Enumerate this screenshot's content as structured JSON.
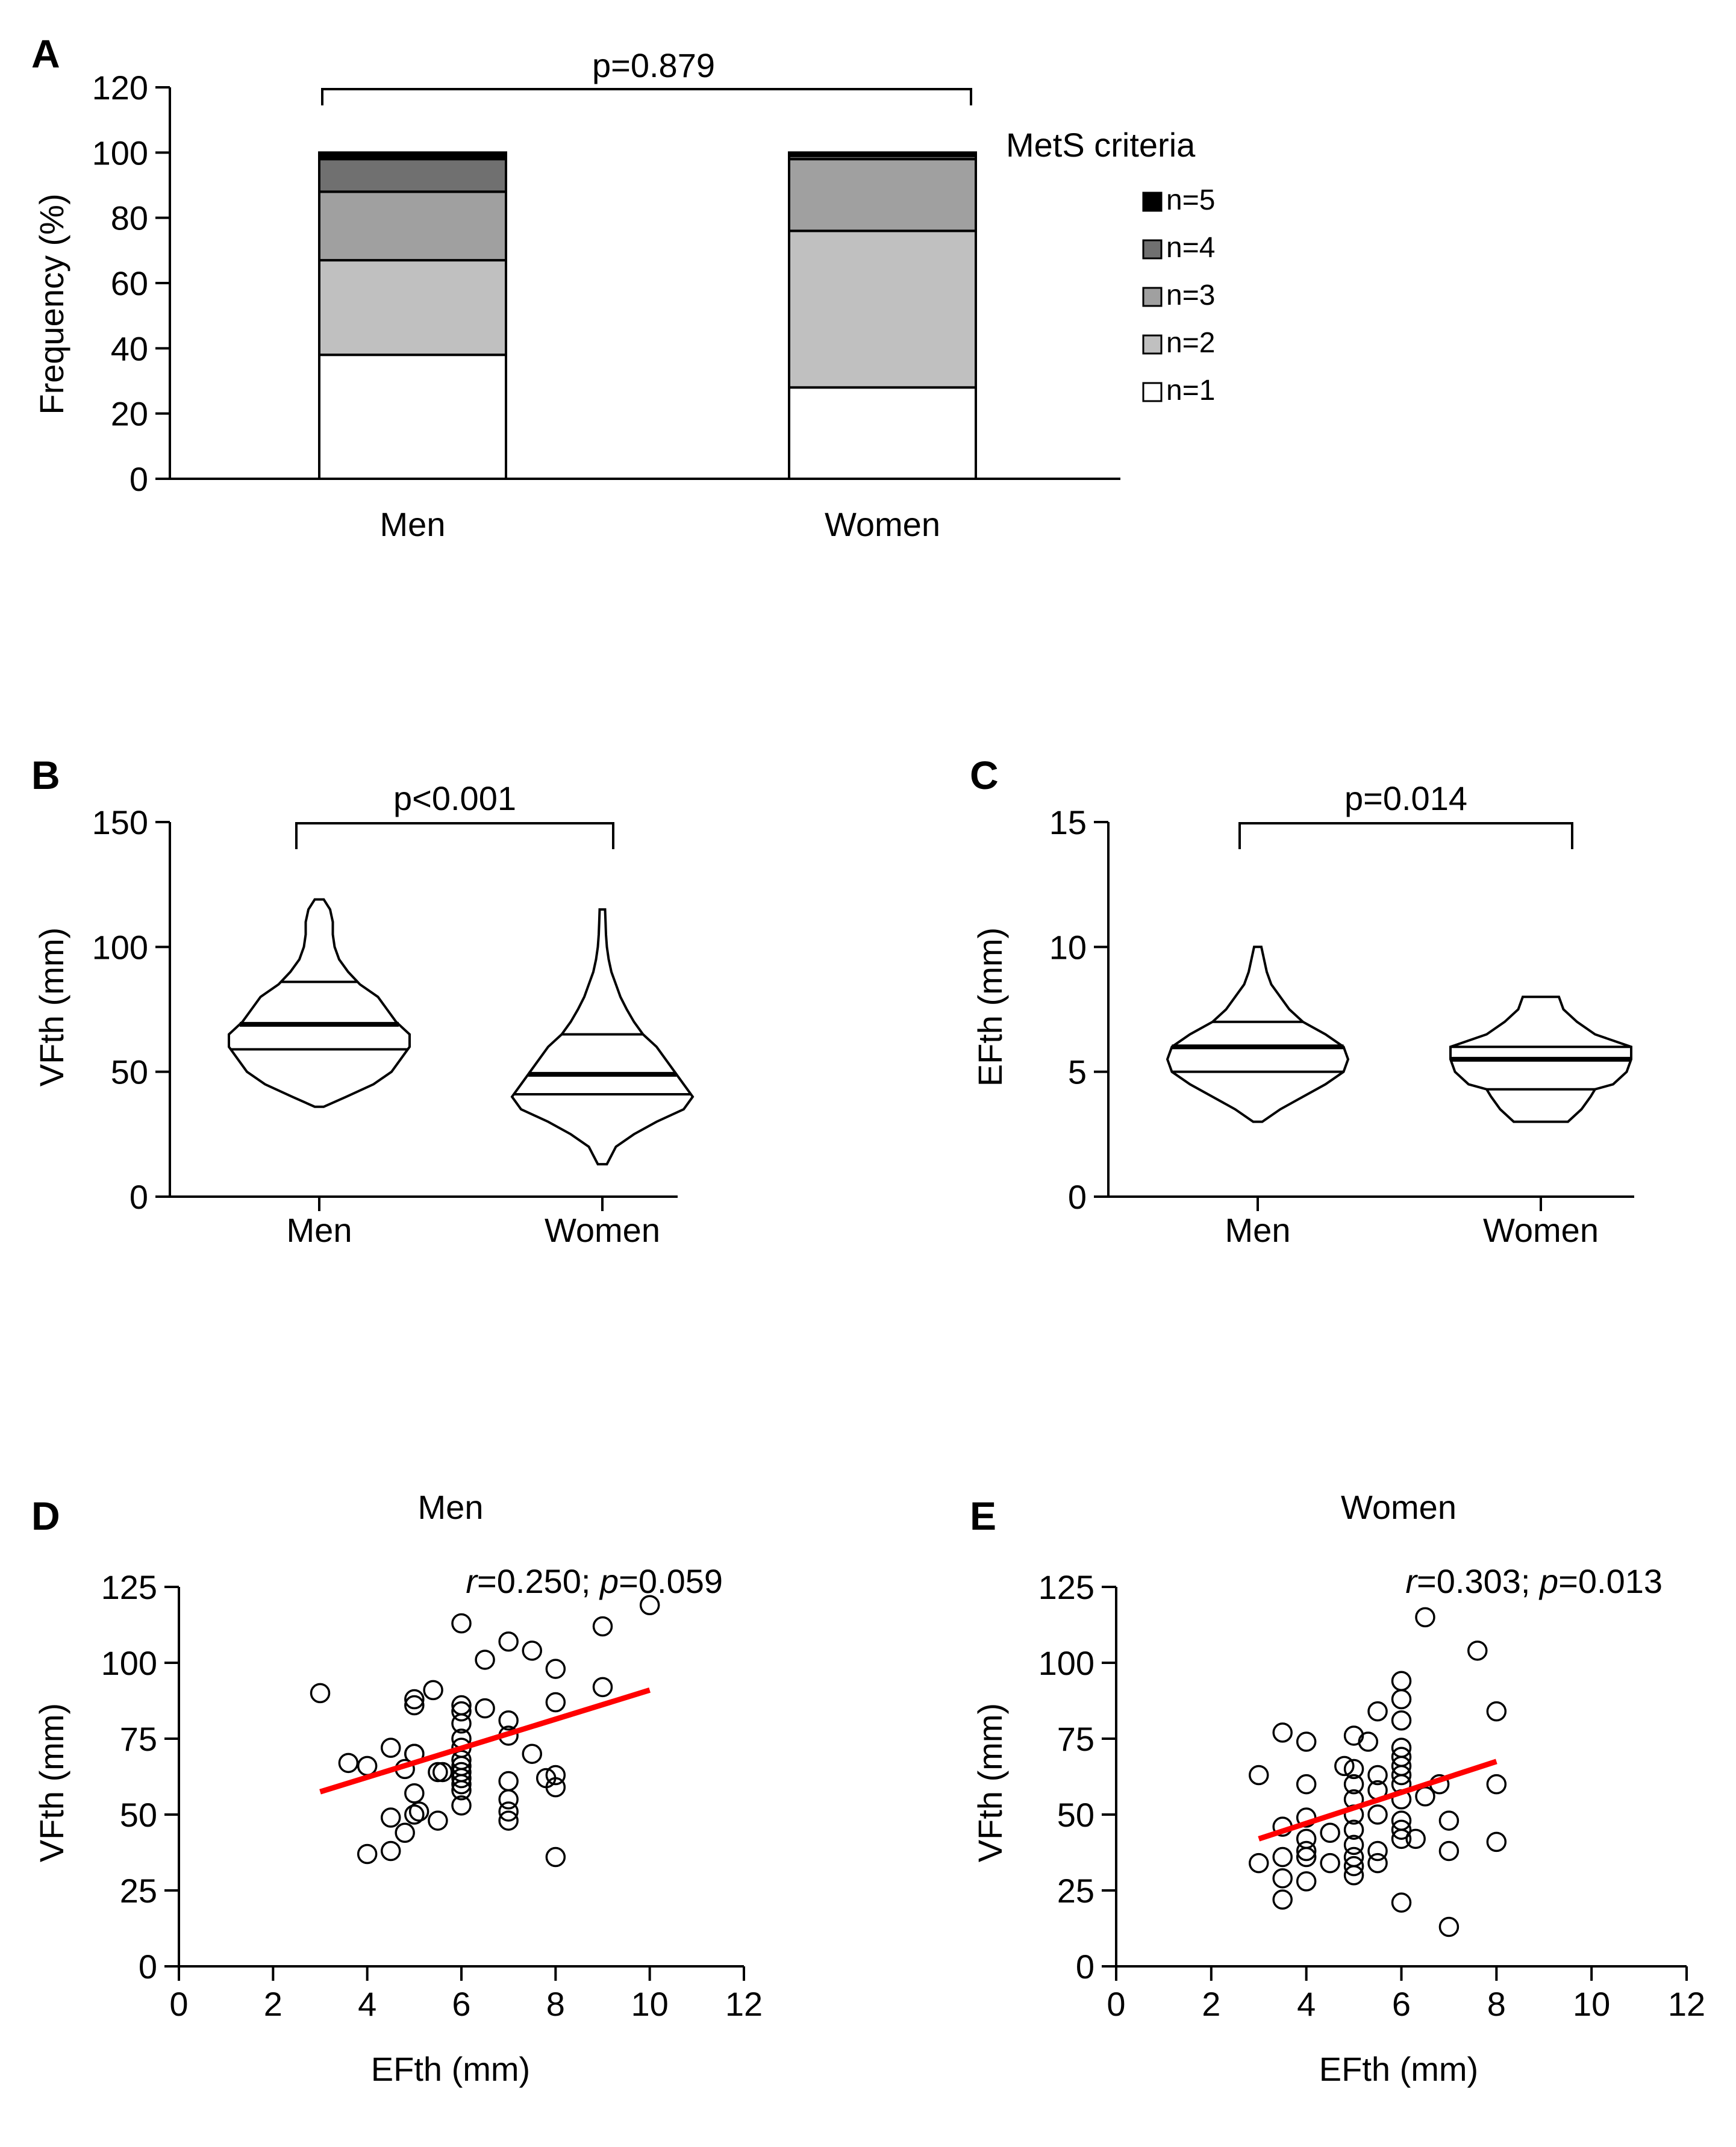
{
  "colors": {
    "n1": "#ffffff",
    "n2": "#c0c0c0",
    "n3": "#a0a0a0",
    "n4": "#707070",
    "n5": "#000000",
    "regression": "#ff0000",
    "ink": "#000000"
  },
  "chart_data": [
    {
      "id": "A",
      "type": "bar",
      "stacked": true,
      "letter": "A",
      "categories": [
        "Men",
        "Women"
      ],
      "ylabel": "Frequency  (%)",
      "ylim": [
        0,
        120
      ],
      "yticks": [
        0,
        20,
        40,
        60,
        80,
        100,
        120
      ],
      "comparison": "p=0.879",
      "legend_title": "MetS criteria",
      "series": [
        {
          "name": "n=1",
          "values": [
            38,
            28
          ]
        },
        {
          "name": "n=2",
          "values": [
            29,
            48
          ]
        },
        {
          "name": "n=3",
          "values": [
            21,
            22
          ]
        },
        {
          "name": "n=4",
          "values": [
            10,
            1
          ]
        },
        {
          "name": "n=5",
          "values": [
            2,
            1
          ]
        }
      ]
    },
    {
      "id": "B",
      "type": "violin",
      "letter": "B",
      "categories": [
        "Men",
        "Women"
      ],
      "ylabel": "VFth (mm)",
      "ylim": [
        0,
        150
      ],
      "yticks": [
        0,
        50,
        100,
        150
      ],
      "comparison": "p<0.001",
      "groups": [
        {
          "name": "Men",
          "median": 69,
          "q1": 59,
          "q3": 86,
          "profile": [
            [
              36,
              0.05
            ],
            [
              40,
              0.3
            ],
            [
              45,
              0.6
            ],
            [
              50,
              0.8
            ],
            [
              55,
              0.9
            ],
            [
              60,
              1.0
            ],
            [
              65,
              1.0
            ],
            [
              70,
              0.85
            ],
            [
              75,
              0.75
            ],
            [
              80,
              0.65
            ],
            [
              85,
              0.45
            ],
            [
              90,
              0.32
            ],
            [
              95,
              0.22
            ],
            [
              100,
              0.17
            ],
            [
              105,
              0.15
            ],
            [
              110,
              0.15
            ],
            [
              115,
              0.12
            ],
            [
              119,
              0.05
            ]
          ]
        },
        {
          "name": "Women",
          "median": 49,
          "q1": 41,
          "q3": 65,
          "profile": [
            [
              13,
              0.05
            ],
            [
              20,
              0.15
            ],
            [
              25,
              0.35
            ],
            [
              30,
              0.6
            ],
            [
              35,
              0.9
            ],
            [
              40,
              1.0
            ],
            [
              45,
              0.9
            ],
            [
              50,
              0.8
            ],
            [
              55,
              0.7
            ],
            [
              60,
              0.6
            ],
            [
              65,
              0.45
            ],
            [
              70,
              0.35
            ],
            [
              75,
              0.27
            ],
            [
              80,
              0.2
            ],
            [
              85,
              0.15
            ],
            [
              90,
              0.1
            ],
            [
              95,
              0.07
            ],
            [
              100,
              0.05
            ],
            [
              105,
              0.04
            ],
            [
              110,
              0.035
            ],
            [
              115,
              0.03
            ]
          ]
        }
      ]
    },
    {
      "id": "C",
      "type": "violin",
      "letter": "C",
      "categories": [
        "Men",
        "Women"
      ],
      "ylabel": "EFth (mm)",
      "ylim": [
        0,
        15
      ],
      "yticks": [
        0,
        5,
        10,
        15
      ],
      "comparison": "p=0.014",
      "groups": [
        {
          "name": "Men",
          "median": 6,
          "q1": 5,
          "q3": 7,
          "profile": [
            [
              3,
              0.05
            ],
            [
              3.5,
              0.25
            ],
            [
              4,
              0.5
            ],
            [
              4.5,
              0.75
            ],
            [
              5,
              0.95
            ],
            [
              5.5,
              1.0
            ],
            [
              6,
              0.95
            ],
            [
              6.5,
              0.75
            ],
            [
              7,
              0.5
            ],
            [
              7.5,
              0.35
            ],
            [
              8,
              0.25
            ],
            [
              8.5,
              0.15
            ],
            [
              9,
              0.1
            ],
            [
              9.5,
              0.07
            ],
            [
              10,
              0.04
            ]
          ]
        },
        {
          "name": "Women",
          "median": 5.5,
          "q1": 4.3,
          "q3": 6,
          "profile": [
            [
              3,
              0.3
            ],
            [
              3.5,
              0.45
            ],
            [
              4,
              0.55
            ],
            [
              4.3,
              0.6
            ],
            [
              4.5,
              0.8
            ],
            [
              5,
              0.95
            ],
            [
              5.5,
              1.0
            ],
            [
              6,
              1.0
            ],
            [
              6.5,
              0.6
            ],
            [
              7,
              0.4
            ],
            [
              7.5,
              0.25
            ],
            [
              8,
              0.2
            ]
          ]
        }
      ]
    },
    {
      "id": "D",
      "type": "scatter",
      "letter": "D",
      "title": "Men",
      "xlabel": "EFth (mm)",
      "ylabel": "VFth (mm)",
      "xlim": [
        0,
        12
      ],
      "ylim": [
        0,
        125
      ],
      "xticks": [
        0,
        2,
        4,
        6,
        8,
        10,
        12
      ],
      "yticks": [
        0,
        25,
        50,
        75,
        100,
        125
      ],
      "stat_r": "0.250",
      "stat_p": "0.059",
      "regression": {
        "x": [
          3,
          10
        ],
        "y": [
          57.5,
          91
        ]
      },
      "points": [
        [
          3,
          90
        ],
        [
          3.6,
          67
        ],
        [
          4,
          66
        ],
        [
          4,
          37
        ],
        [
          4.5,
          72
        ],
        [
          4.5,
          49
        ],
        [
          4.5,
          38
        ],
        [
          4.8,
          44
        ],
        [
          4.8,
          65
        ],
        [
          5,
          70
        ],
        [
          5,
          70
        ],
        [
          5,
          88
        ],
        [
          5,
          86
        ],
        [
          5,
          57
        ],
        [
          5,
          50
        ],
        [
          5.1,
          51
        ],
        [
          5.4,
          91
        ],
        [
          5.5,
          48
        ],
        [
          5.5,
          64
        ],
        [
          5.6,
          64
        ],
        [
          6,
          113
        ],
        [
          6,
          86
        ],
        [
          6,
          84
        ],
        [
          6,
          80
        ],
        [
          6,
          75
        ],
        [
          6,
          72
        ],
        [
          6,
          68
        ],
        [
          6,
          66
        ],
        [
          6,
          64
        ],
        [
          6,
          62
        ],
        [
          6,
          60
        ],
        [
          6,
          58
        ],
        [
          6,
          53
        ],
        [
          6.5,
          101
        ],
        [
          6.5,
          85
        ],
        [
          7,
          107
        ],
        [
          7,
          81
        ],
        [
          7,
          76
        ],
        [
          7,
          61
        ],
        [
          7,
          55
        ],
        [
          7,
          51
        ],
        [
          7,
          48
        ],
        [
          7.5,
          104
        ],
        [
          7.5,
          70
        ],
        [
          7.8,
          62
        ],
        [
          8,
          98
        ],
        [
          8,
          87
        ],
        [
          8,
          63
        ],
        [
          8,
          59
        ],
        [
          8,
          36
        ],
        [
          9,
          92
        ],
        [
          9,
          112
        ],
        [
          10,
          119
        ]
      ]
    },
    {
      "id": "E",
      "type": "scatter",
      "letter": "E",
      "title": "Women",
      "xlabel": "EFth (mm)",
      "ylabel": "VFth (mm)",
      "xlim": [
        0,
        12
      ],
      "ylim": [
        0,
        125
      ],
      "xticks": [
        0,
        2,
        4,
        6,
        8,
        10,
        12
      ],
      "yticks": [
        0,
        25,
        50,
        75,
        100,
        125
      ],
      "stat_r": "0.303",
      "stat_p": "0.013",
      "regression": {
        "x": [
          3,
          8
        ],
        "y": [
          42,
          67.5
        ]
      },
      "points": [
        [
          3,
          63
        ],
        [
          3,
          34
        ],
        [
          3.5,
          77
        ],
        [
          3.5,
          46
        ],
        [
          3.5,
          36
        ],
        [
          3.5,
          29
        ],
        [
          3.5,
          22
        ],
        [
          4,
          74
        ],
        [
          4,
          60
        ],
        [
          4,
          49
        ],
        [
          4,
          42
        ],
        [
          4,
          38
        ],
        [
          4,
          36
        ],
        [
          4,
          28
        ],
        [
          4.5,
          34
        ],
        [
          4.5,
          44
        ],
        [
          4.8,
          66
        ],
        [
          5,
          76
        ],
        [
          5,
          65
        ],
        [
          5,
          60
        ],
        [
          5,
          55
        ],
        [
          5,
          50
        ],
        [
          5,
          45
        ],
        [
          5,
          40
        ],
        [
          5,
          36
        ],
        [
          5,
          33
        ],
        [
          5,
          30
        ],
        [
          5.3,
          74
        ],
        [
          5.5,
          84
        ],
        [
          5.5,
          63
        ],
        [
          5.5,
          58
        ],
        [
          5.5,
          50
        ],
        [
          5.5,
          38
        ],
        [
          5.5,
          34
        ],
        [
          6,
          94
        ],
        [
          6,
          88
        ],
        [
          6,
          81
        ],
        [
          6,
          72
        ],
        [
          6,
          69
        ],
        [
          6,
          66
        ],
        [
          6,
          63
        ],
        [
          6,
          60
        ],
        [
          6,
          55
        ],
        [
          6,
          48
        ],
        [
          6,
          45
        ],
        [
          6,
          42
        ],
        [
          6,
          21
        ],
        [
          6.3,
          42
        ],
        [
          6.5,
          115
        ],
        [
          6.5,
          56
        ],
        [
          6.8,
          60
        ],
        [
          7,
          48
        ],
        [
          7,
          38
        ],
        [
          7,
          13
        ],
        [
          7.6,
          104
        ],
        [
          8,
          84
        ],
        [
          8,
          60
        ],
        [
          8,
          41
        ]
      ]
    }
  ]
}
